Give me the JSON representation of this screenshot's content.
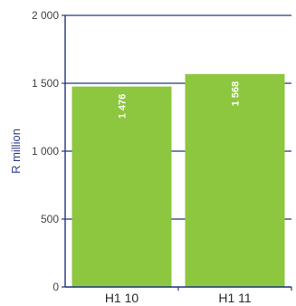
{
  "chart_data": {
    "type": "bar",
    "categories": [
      "H1 10",
      "H1 11"
    ],
    "values": [
      1476,
      1568
    ],
    "value_labels": [
      "1 476",
      "1 568"
    ],
    "ylabel": "R million",
    "xlabel": "",
    "ylim": [
      0,
      2000
    ],
    "yticks": [
      0,
      500,
      1000,
      1500,
      2000
    ],
    "ytick_labels": [
      "0",
      "500",
      "1 000",
      "1 500",
      "2 000"
    ],
    "grid": true,
    "legend": "none",
    "colors": {
      "bar": "#8dc63f",
      "axis": "#1f3a7a",
      "grid": "#1f3a7a",
      "ylabel": "#2e3f8f"
    }
  }
}
